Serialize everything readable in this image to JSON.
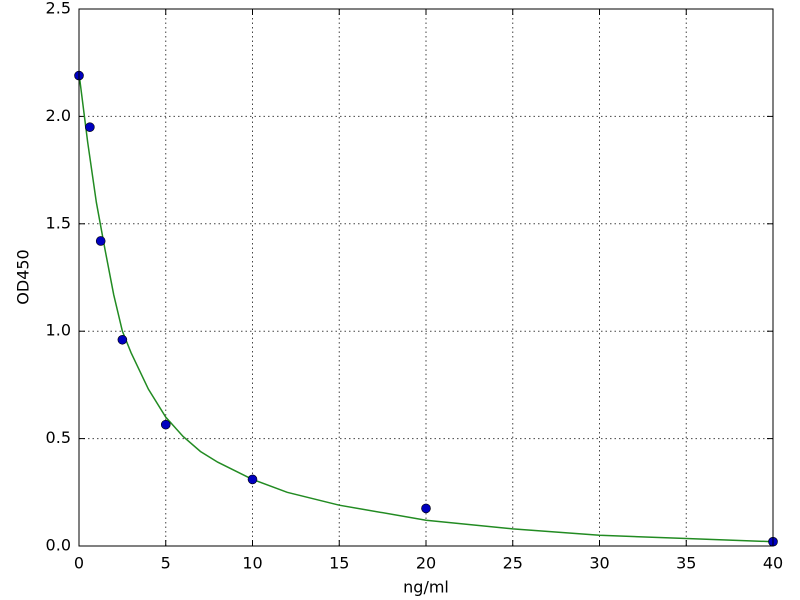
{
  "chart_data": {
    "type": "scatter",
    "xlabel": "ng/ml",
    "ylabel": "OD450",
    "points": {
      "color": "#0000bf",
      "x": [
        0,
        0.625,
        1.25,
        2.5,
        5,
        10,
        20,
        40
      ],
      "y": [
        2.19,
        1.95,
        1.42,
        0.96,
        0.565,
        0.31,
        0.175,
        0.02
      ]
    },
    "curve": {
      "color": "#228b22",
      "x": [
        0,
        0.5,
        1,
        1.5,
        2,
        2.5,
        3,
        4,
        5,
        6,
        7,
        8,
        10,
        12,
        15,
        20,
        25,
        30,
        35,
        40
      ],
      "y": [
        2.2,
        1.88,
        1.6,
        1.38,
        1.17,
        1.0,
        0.9,
        0.73,
        0.6,
        0.51,
        0.44,
        0.39,
        0.31,
        0.25,
        0.19,
        0.12,
        0.08,
        0.05,
        0.035,
        0.02
      ]
    },
    "xlim": [
      0,
      40
    ],
    "xticks": [
      0,
      5,
      10,
      15,
      20,
      25,
      30,
      35,
      40
    ],
    "ylim": [
      0,
      2.5
    ],
    "yticks": [
      {
        "value": 0,
        "label": "0.0"
      },
      {
        "value": 0.5,
        "label": "0.5"
      },
      {
        "value": 1,
        "label": "1.0"
      },
      {
        "value": 1.5,
        "label": "1.5"
      },
      {
        "value": 2,
        "label": "2.0"
      },
      {
        "value": 2.5,
        "label": "2.5"
      }
    ],
    "grid": true
  }
}
